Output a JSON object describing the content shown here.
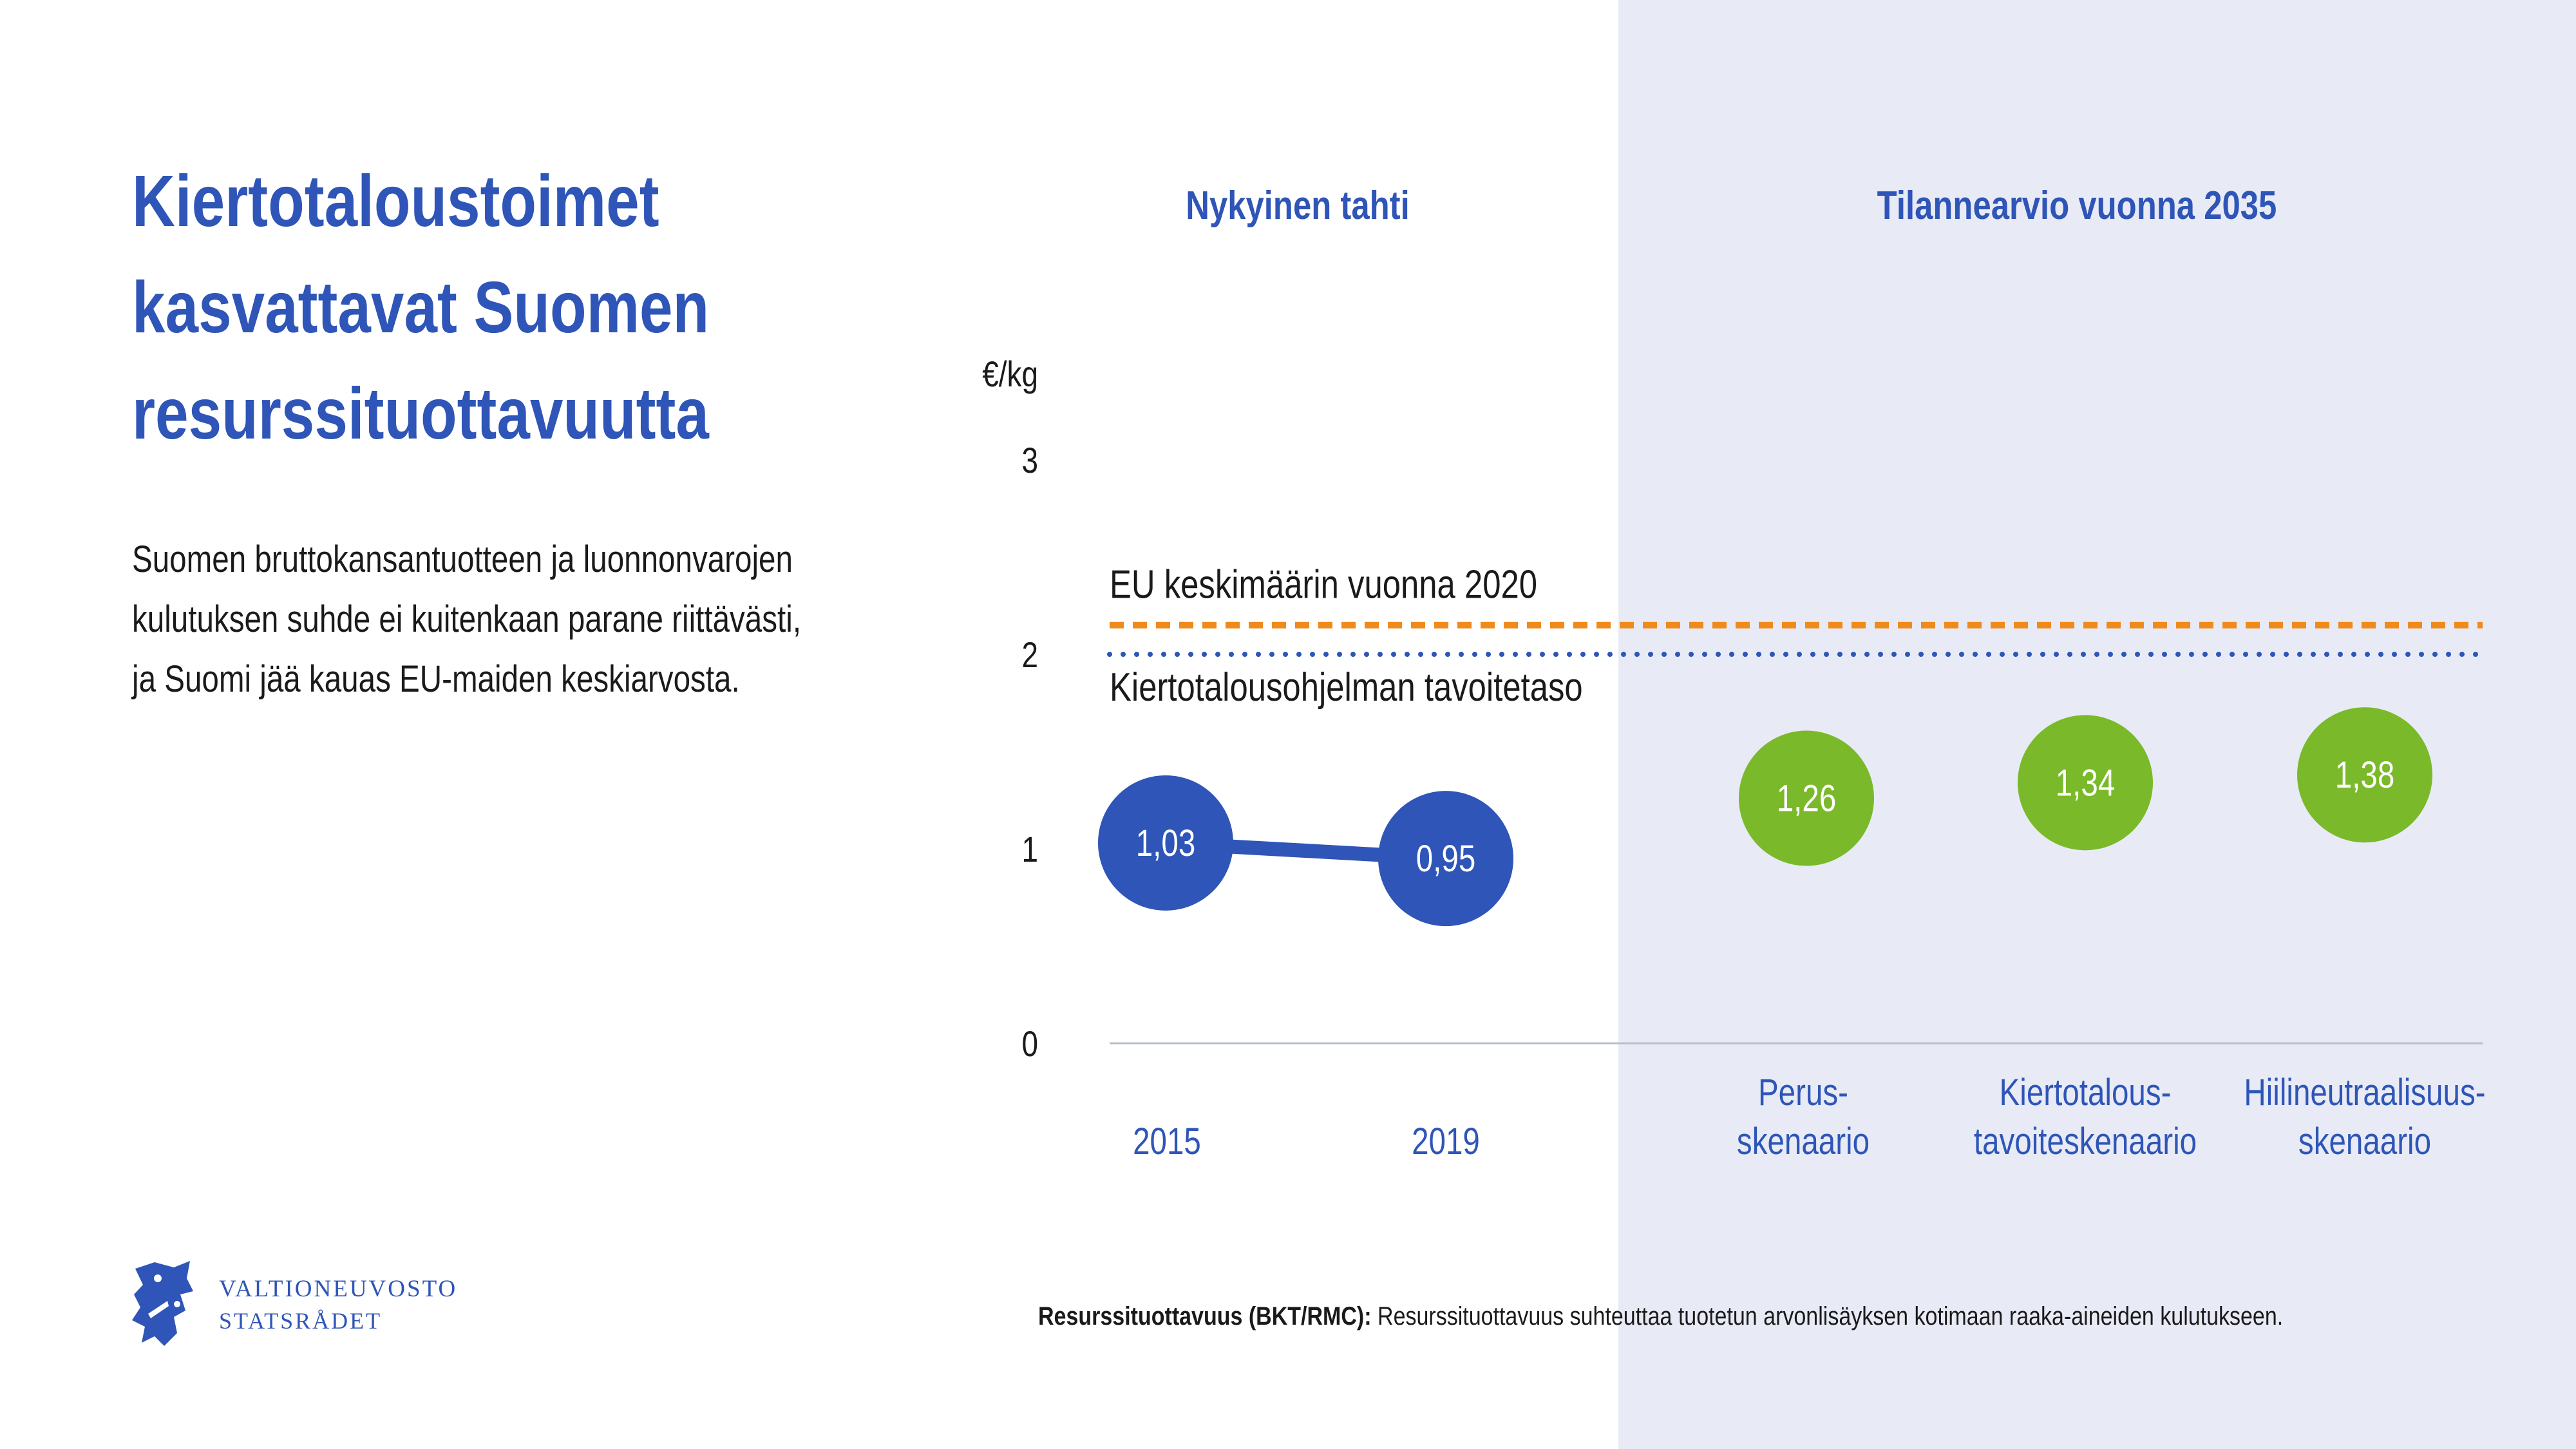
{
  "title": {
    "lines": [
      "Kiertotaloustoimet",
      "kasvattavat Suomen",
      "resurssituottavuutta"
    ]
  },
  "intro": {
    "lines": [
      "Suomen bruttokansantuotteen ja luonnonvarojen",
      "kulutuksen suhde ei kuitenkaan parane riittävästi,",
      "ja Suomi jää kauas EU-maiden keskiarvosta."
    ]
  },
  "logo": {
    "line1": "VALTIONEUVOSTO",
    "line2": "STATSRÅDET"
  },
  "footnote": {
    "term": "Resurssituottavuus (BKT/RMC):",
    "text": " Resurssituottavuus suhteuttaa tuotetun arvonlisäyksen kotimaan raaka-aineiden kulutukseen."
  },
  "colors": {
    "blue": "#2e55b7",
    "green": "#7ab929",
    "orange": "#ef8a1b",
    "panel": "#e8ebf5",
    "axis": "#b9bfca"
  },
  "chart_data": {
    "type": "scatter",
    "ylabel": "€/kg",
    "ylim": [
      0,
      3
    ],
    "yticks": [
      {
        "value": 0,
        "label": "0"
      },
      {
        "value": 1,
        "label": "1"
      },
      {
        "value": 2,
        "label": "2"
      },
      {
        "value": 3,
        "label": "3"
      }
    ],
    "section_headers": [
      "Nykyinen tahti",
      "Tilannearvio vuonna 2035"
    ],
    "categories": [
      [
        "2015"
      ],
      [
        "2019"
      ],
      [
        "Perus-",
        "skenaario"
      ],
      [
        "Kiertotalous-",
        "tavoiteskenaario"
      ],
      [
        "Hiilineutraalisuus-",
        "skenaario"
      ]
    ],
    "series": [
      {
        "name": "Nykyinen tahti",
        "color": "blue",
        "connected": true,
        "points": [
          {
            "category": 0,
            "value": 1.03,
            "label": "1,03"
          },
          {
            "category": 1,
            "value": 0.95,
            "label": "0,95"
          }
        ]
      },
      {
        "name": "Tilannearvio vuonna 2035",
        "color": "green",
        "connected": false,
        "points": [
          {
            "category": 2,
            "value": 1.26,
            "label": "1,26"
          },
          {
            "category": 3,
            "value": 1.34,
            "label": "1,34"
          },
          {
            "category": 4,
            "value": 1.38,
            "label": "1,38"
          }
        ]
      }
    ],
    "reference_lines": [
      {
        "label": "EU keskimäärin vuonna 2020",
        "value": 2.15,
        "style": "dashed",
        "color": "orange"
      },
      {
        "label": "Kiertotalousohjelman tavoitetaso",
        "value": 2.0,
        "style": "dotted",
        "color": "blue"
      }
    ]
  }
}
